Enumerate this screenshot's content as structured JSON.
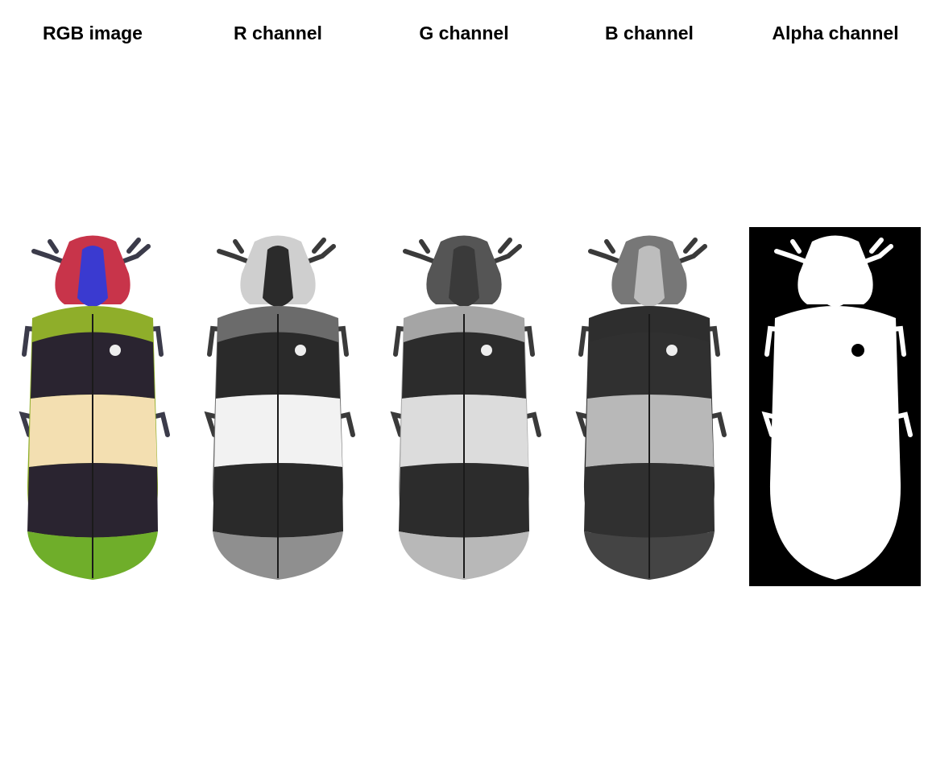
{
  "panels": [
    {
      "id": "rgb",
      "title": "RGB image"
    },
    {
      "id": "red",
      "title": "R channel"
    },
    {
      "id": "green",
      "title": "G channel"
    },
    {
      "id": "blue",
      "title": "B channel"
    },
    {
      "id": "alpha",
      "title": "Alpha channel"
    }
  ],
  "colors": {
    "rgb": {
      "head": "#c8344a",
      "pronotum": "#3a3ad0",
      "shoulder": "#8fae2a",
      "band_dark": "#2a2430",
      "band_light": "#f3dfb1",
      "tip": "#6fae2a",
      "legs": "#3b3b4a"
    },
    "red": {
      "head": "#cfcfcf",
      "pronotum": "#2b2b2b",
      "shoulder": "#6b6b6b",
      "band_dark": "#2a2a2a",
      "band_light": "#f2f2f2",
      "tip": "#8f8f8f",
      "legs": "#3a3a3a"
    },
    "green": {
      "head": "#555555",
      "pronotum": "#3a3a3a",
      "shoulder": "#a5a5a5",
      "band_dark": "#2c2c2c",
      "band_light": "#dcdcdc",
      "tip": "#b8b8b8",
      "legs": "#3a3a3a"
    },
    "blue": {
      "head": "#777777",
      "pronotum": "#bdbdbd",
      "shoulder": "#2e2e2e",
      "band_dark": "#303030",
      "band_light": "#b8b8b8",
      "tip": "#444444",
      "legs": "#3a3a3a"
    },
    "alpha": {
      "background": "#000000",
      "body": "#ffffff",
      "dot": "#000000"
    }
  }
}
